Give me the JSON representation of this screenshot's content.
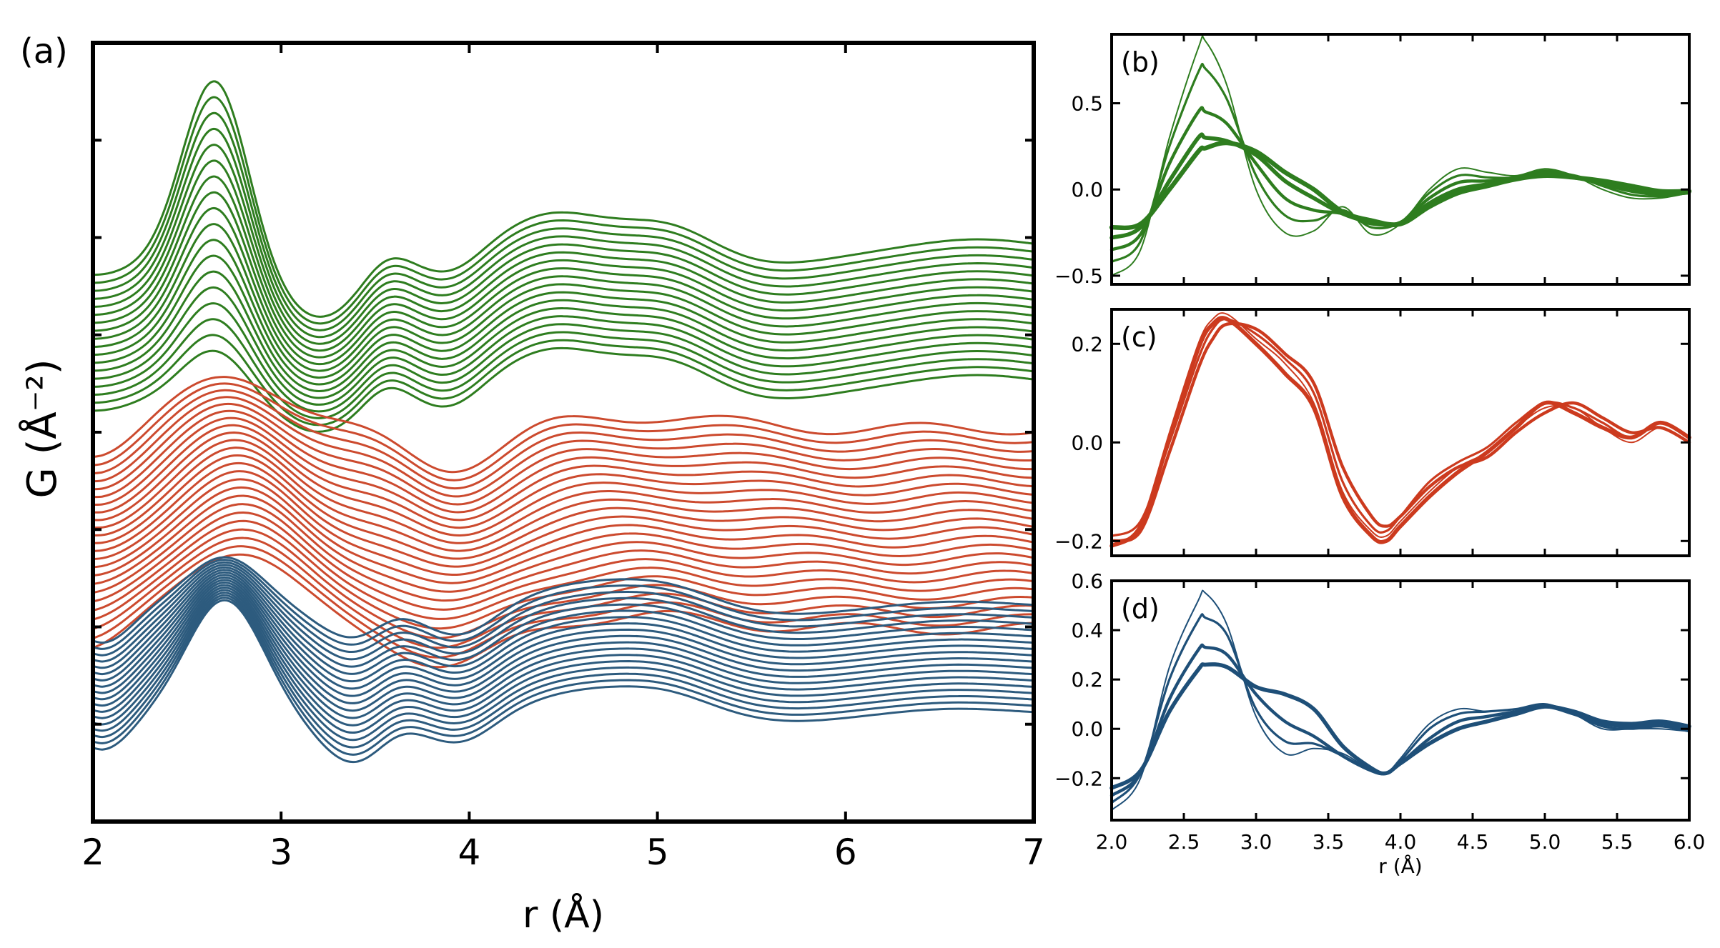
{
  "chart_data": [
    {
      "panel": "(a)",
      "type": "line",
      "title": "",
      "xlabel": "r (Å)",
      "ylabel": "G (Å⁻²)",
      "xlim": [
        2,
        7
      ],
      "xticks": [
        "2",
        "3",
        "4",
        "5",
        "6",
        "7"
      ],
      "description_free": "stacked pair distribution functions; y axis has no tick labels",
      "groups": [
        {
          "name": "green",
          "color": "#2e7d1f",
          "count": 18
        },
        {
          "name": "red",
          "color": "#cc4a2e",
          "count": 24
        },
        {
          "name": "blue",
          "color": "#2d5b7e",
          "count": 18
        }
      ]
    },
    {
      "panel": "(b)",
      "type": "line",
      "xlim": [
        2.0,
        6.0
      ],
      "ylim": [
        -0.55,
        0.9
      ],
      "yticks": [
        "0.5",
        "0.0",
        "−0.5"
      ],
      "color": "#2e7d1f",
      "series": [
        {
          "name": "b1",
          "x": [
            2.0,
            2.2,
            2.4,
            2.6,
            2.65,
            2.8,
            3.0,
            3.2,
            3.4,
            3.6,
            3.8,
            4.0,
            4.2,
            4.4,
            4.6,
            4.8,
            5.0,
            5.2,
            5.4,
            5.6,
            5.8,
            6.0
          ],
          "values": [
            -0.5,
            -0.35,
            0.3,
            0.82,
            0.86,
            0.6,
            0.0,
            -0.25,
            -0.24,
            -0.1,
            -0.26,
            -0.2,
            0.0,
            0.12,
            0.1,
            0.08,
            0.12,
            0.08,
            0.0,
            -0.05,
            -0.05,
            -0.02
          ]
        },
        {
          "name": "b2",
          "x": [
            2.0,
            2.2,
            2.4,
            2.6,
            2.65,
            2.8,
            3.0,
            3.2,
            3.4,
            3.6,
            3.8,
            4.0,
            4.2,
            4.4,
            4.6,
            4.8,
            5.0,
            5.2,
            5.4,
            5.6,
            5.8,
            6.0
          ],
          "values": [
            -0.42,
            -0.3,
            0.25,
            0.68,
            0.7,
            0.52,
            0.08,
            -0.15,
            -0.18,
            -0.12,
            -0.22,
            -0.19,
            -0.02,
            0.08,
            0.07,
            0.07,
            0.11,
            0.08,
            0.02,
            -0.03,
            -0.04,
            -0.02
          ]
        },
        {
          "name": "b3",
          "x": [
            2.0,
            2.2,
            2.4,
            2.6,
            2.65,
            2.8,
            3.0,
            3.2,
            3.4,
            3.6,
            3.8,
            4.0,
            4.2,
            4.4,
            4.6,
            4.8,
            5.0,
            5.2,
            5.4,
            5.6,
            5.8,
            6.0
          ],
          "values": [
            -0.35,
            -0.26,
            0.15,
            0.45,
            0.45,
            0.38,
            0.15,
            -0.05,
            -0.12,
            -0.14,
            -0.2,
            -0.19,
            -0.05,
            0.04,
            0.05,
            0.07,
            0.1,
            0.08,
            0.03,
            -0.01,
            -0.03,
            -0.02
          ]
        },
        {
          "name": "b4",
          "x": [
            2.0,
            2.2,
            2.4,
            2.6,
            2.65,
            2.8,
            3.0,
            3.2,
            3.4,
            3.6,
            3.8,
            4.0,
            4.2,
            4.4,
            4.6,
            4.8,
            5.0,
            5.2,
            5.4,
            5.6,
            5.8,
            6.0
          ],
          "values": [
            -0.28,
            -0.22,
            0.05,
            0.3,
            0.3,
            0.28,
            0.2,
            0.05,
            -0.05,
            -0.14,
            -0.19,
            -0.2,
            -0.08,
            0.0,
            0.03,
            0.06,
            0.09,
            0.07,
            0.04,
            0.01,
            -0.02,
            -0.01
          ]
        },
        {
          "name": "b5",
          "x": [
            2.0,
            2.2,
            2.4,
            2.6,
            2.65,
            2.8,
            3.0,
            3.2,
            3.4,
            3.6,
            3.8,
            4.0,
            4.2,
            4.4,
            4.6,
            4.8,
            5.0,
            5.2,
            5.4,
            5.6,
            5.8,
            6.0
          ],
          "values": [
            -0.22,
            -0.2,
            0.0,
            0.22,
            0.24,
            0.27,
            0.22,
            0.1,
            0.0,
            -0.13,
            -0.18,
            -0.2,
            -0.1,
            -0.02,
            0.02,
            0.06,
            0.08,
            0.07,
            0.05,
            0.02,
            -0.01,
            -0.01
          ]
        }
      ]
    },
    {
      "panel": "(c)",
      "type": "line",
      "xlim": [
        2.0,
        6.0
      ],
      "ylim": [
        -0.23,
        0.27
      ],
      "yticks": [
        "0.2",
        "0.0",
        "−0.2"
      ],
      "color": "#cc3a1e",
      "series": [
        {
          "name": "c1",
          "x": [
            2.0,
            2.2,
            2.4,
            2.6,
            2.7,
            2.8,
            3.0,
            3.2,
            3.4,
            3.6,
            3.8,
            3.9,
            4.0,
            4.2,
            4.4,
            4.6,
            4.8,
            5.0,
            5.2,
            5.4,
            5.6,
            5.8,
            6.0
          ],
          "values": [
            -0.2,
            -0.17,
            0.02,
            0.2,
            0.25,
            0.26,
            0.21,
            0.16,
            0.08,
            -0.1,
            -0.18,
            -0.19,
            -0.16,
            -0.1,
            -0.05,
            -0.02,
            0.03,
            0.07,
            0.07,
            0.03,
            0.0,
            0.03,
            0.0
          ]
        },
        {
          "name": "c2",
          "x": [
            2.0,
            2.2,
            2.4,
            2.6,
            2.7,
            2.8,
            3.0,
            3.2,
            3.4,
            3.6,
            3.8,
            3.9,
            4.0,
            4.2,
            4.4,
            4.6,
            4.8,
            5.0,
            5.2,
            5.4,
            5.6,
            5.8,
            6.0
          ],
          "values": [
            -0.19,
            -0.16,
            0.0,
            0.17,
            0.23,
            0.25,
            0.22,
            0.17,
            0.1,
            -0.08,
            -0.17,
            -0.18,
            -0.15,
            -0.08,
            -0.04,
            -0.01,
            0.04,
            0.08,
            0.07,
            0.04,
            0.01,
            0.04,
            0.01
          ]
        },
        {
          "name": "c3",
          "x": [
            2.0,
            2.2,
            2.4,
            2.6,
            2.7,
            2.8,
            3.0,
            3.2,
            3.4,
            3.6,
            3.8,
            3.9,
            4.0,
            4.2,
            4.4,
            4.6,
            4.8,
            5.0,
            5.2,
            5.4,
            5.6,
            5.8,
            6.0
          ],
          "values": [
            -0.2,
            -0.18,
            -0.02,
            0.15,
            0.21,
            0.24,
            0.23,
            0.18,
            0.12,
            -0.05,
            -0.15,
            -0.17,
            -0.15,
            -0.09,
            -0.05,
            -0.03,
            0.02,
            0.06,
            0.08,
            0.05,
            0.02,
            0.03,
            0.0
          ]
        },
        {
          "name": "c4",
          "x": [
            2.0,
            2.2,
            2.4,
            2.6,
            2.7,
            2.8,
            3.0,
            3.2,
            3.4,
            3.6,
            3.8,
            3.9,
            4.0,
            4.2,
            4.4,
            4.6,
            4.8,
            5.0,
            5.2,
            5.4,
            5.6,
            5.8,
            6.0
          ],
          "values": [
            -0.21,
            -0.17,
            0.01,
            0.19,
            0.24,
            0.25,
            0.2,
            0.14,
            0.07,
            -0.11,
            -0.19,
            -0.2,
            -0.17,
            -0.11,
            -0.06,
            -0.02,
            0.03,
            0.08,
            0.06,
            0.03,
            0.01,
            0.04,
            0.01
          ]
        }
      ]
    },
    {
      "panel": "(d)",
      "type": "line",
      "xlim": [
        2.0,
        6.0
      ],
      "ylim": [
        -0.37,
        0.6
      ],
      "yticks": [
        "0.6",
        "0.4",
        "0.2",
        "0.0",
        "−0.2"
      ],
      "xticks": [
        "2.0",
        "2.5",
        "3.0",
        "3.5",
        "4.0",
        "4.5",
        "5.0",
        "5.5",
        "6.0"
      ],
      "xlabel": "r (Å)",
      "color": "#1e4f78",
      "series": [
        {
          "name": "d1",
          "x": [
            2.0,
            2.2,
            2.4,
            2.6,
            2.65,
            2.8,
            3.0,
            3.2,
            3.4,
            3.6,
            3.8,
            3.9,
            4.0,
            4.2,
            4.4,
            4.6,
            4.8,
            5.0,
            5.2,
            5.4,
            5.6,
            5.8,
            6.0
          ],
          "values": [
            -0.33,
            -0.2,
            0.25,
            0.52,
            0.55,
            0.42,
            0.05,
            -0.1,
            -0.08,
            -0.1,
            -0.17,
            -0.18,
            -0.12,
            0.02,
            0.08,
            0.07,
            0.08,
            0.1,
            0.06,
            0.0,
            0.0,
            0.0,
            -0.01
          ]
        },
        {
          "name": "d2",
          "x": [
            2.0,
            2.2,
            2.4,
            2.6,
            2.65,
            2.8,
            3.0,
            3.2,
            3.4,
            3.6,
            3.8,
            3.9,
            4.0,
            4.2,
            4.4,
            4.6,
            4.8,
            5.0,
            5.2,
            5.4,
            5.6,
            5.8,
            6.0
          ],
          "values": [
            -0.3,
            -0.18,
            0.2,
            0.44,
            0.45,
            0.38,
            0.08,
            -0.05,
            -0.06,
            -0.11,
            -0.17,
            -0.18,
            -0.13,
            0.0,
            0.06,
            0.07,
            0.08,
            0.1,
            0.06,
            0.01,
            0.0,
            0.01,
            -0.01
          ]
        },
        {
          "name": "d3",
          "x": [
            2.0,
            2.2,
            2.4,
            2.6,
            2.65,
            2.8,
            3.0,
            3.2,
            3.4,
            3.6,
            3.8,
            3.9,
            4.0,
            4.2,
            4.4,
            4.6,
            4.8,
            5.0,
            5.2,
            5.4,
            5.6,
            5.8,
            6.0
          ],
          "values": [
            -0.27,
            -0.18,
            0.12,
            0.32,
            0.33,
            0.3,
            0.14,
            0.03,
            -0.03,
            -0.11,
            -0.17,
            -0.18,
            -0.14,
            -0.04,
            0.03,
            0.05,
            0.07,
            0.09,
            0.06,
            0.02,
            0.01,
            0.02,
            0.0
          ]
        },
        {
          "name": "d4",
          "x": [
            2.0,
            2.2,
            2.4,
            2.6,
            2.65,
            2.8,
            3.0,
            3.2,
            3.4,
            3.6,
            3.8,
            3.9,
            4.0,
            4.2,
            4.4,
            4.6,
            4.8,
            5.0,
            5.2,
            5.4,
            5.6,
            5.8,
            6.0
          ],
          "values": [
            -0.24,
            -0.17,
            0.07,
            0.24,
            0.26,
            0.25,
            0.17,
            0.14,
            0.08,
            -0.07,
            -0.16,
            -0.18,
            -0.14,
            -0.06,
            0.0,
            0.03,
            0.06,
            0.09,
            0.07,
            0.03,
            0.02,
            0.03,
            0.01
          ]
        }
      ]
    }
  ]
}
